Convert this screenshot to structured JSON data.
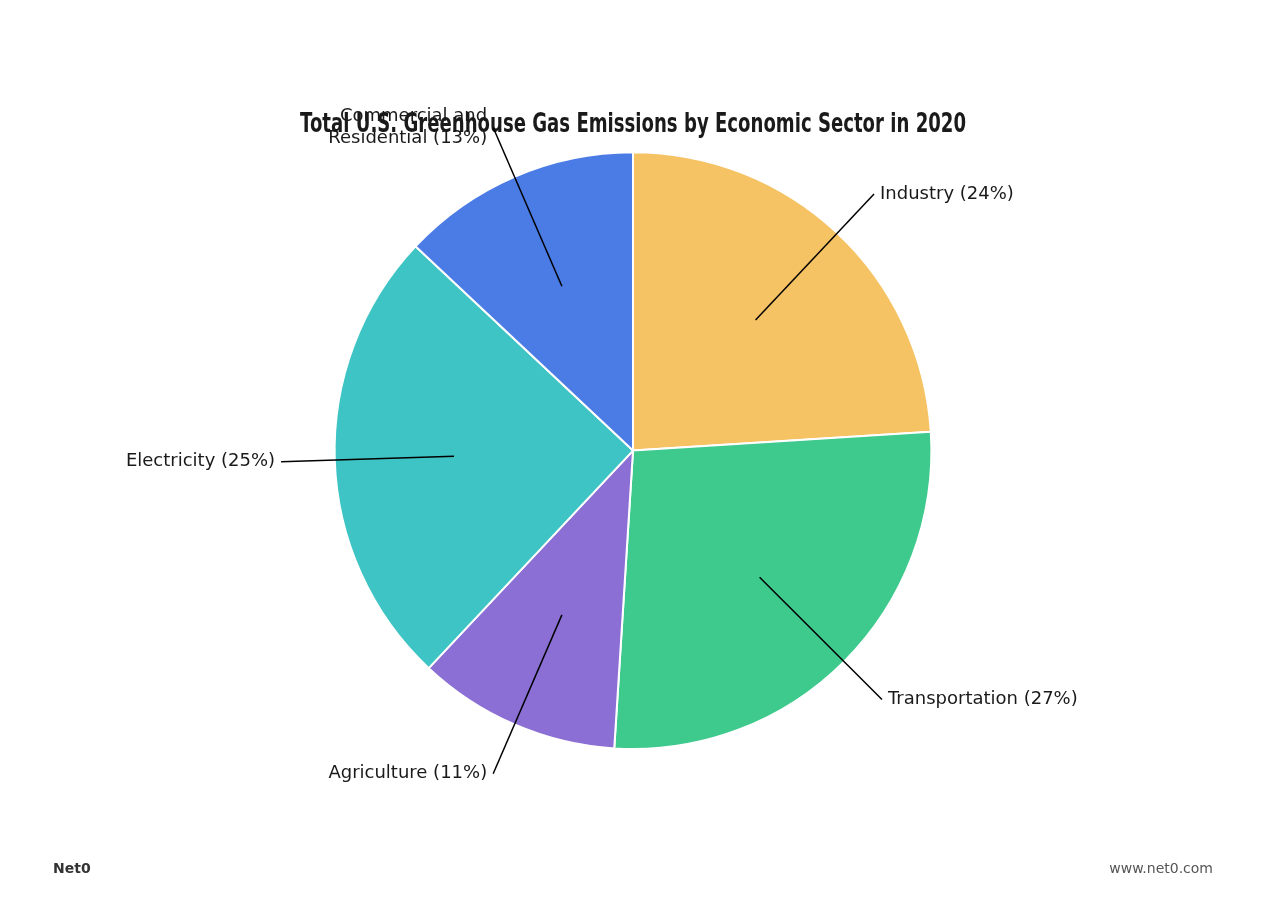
{
  "chart_data": {
    "type": "pie",
    "title": "Total U.S. Greenhouse Gas Emissions by Economic Sector in 2020",
    "categories": [
      "Industry (24%)",
      "Transportation (27%)",
      "Agriculture (11%)",
      "Electricity (25%)",
      "Commercial and\nResidential (13%)"
    ],
    "values": [
      24,
      27,
      11,
      25,
      13
    ],
    "colors": [
      "#F5C264",
      "#3EC98D",
      "#8B6FD4",
      "#3EC4C4",
      "#4B7BE5"
    ],
    "annotations": [
      "Net0",
      "www.net0.com"
    ]
  }
}
